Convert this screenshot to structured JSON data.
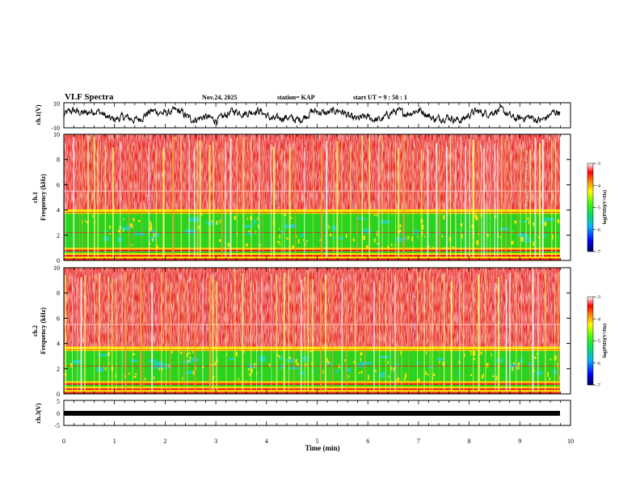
{
  "header": {
    "title": "VLF Spectra",
    "date": "Nov.24, 2025",
    "station": "station= KAP",
    "start": "start  UT  =   9 : 50 : 1"
  },
  "chart_data": [
    {
      "type": "line",
      "name": "ch1-waveform",
      "ylabel": "ch.1(V)",
      "ylim": [
        -10,
        10
      ],
      "yticks": [
        "10",
        "-10"
      ],
      "xlim": [
        0,
        9.83
      ],
      "description_values": "noisy voltage trace oscillating roughly between -6 and 6 V"
    },
    {
      "type": "heatmap",
      "name": "ch1-spectrogram",
      "ylabel_top": "ch.1",
      "ylabel": "Frequency  (kHz)",
      "ylim": [
        0,
        10
      ],
      "yticks": [
        "0",
        "2",
        "4",
        "6",
        "8",
        "10"
      ],
      "xlim": [
        0,
        9.83
      ],
      "bands_khz": {
        "low_power_band": [
          1.0,
          3.8
        ],
        "high_power_above": 3.8
      },
      "colorbar": {
        "label": "log(PSD)(V²/Hz)",
        "ticks": [
          "-3",
          "-4",
          "-5",
          "-6",
          "-7"
        ],
        "range": [
          -7,
          -3
        ]
      }
    },
    {
      "type": "heatmap",
      "name": "ch2-spectrogram",
      "ylabel_top": "ch.2",
      "ylabel": "Frequency  (kHz)",
      "ylim": [
        0,
        10
      ],
      "yticks": [
        "0",
        "2",
        "4",
        "6",
        "8",
        "10"
      ],
      "xlim": [
        0,
        9.83
      ],
      "bands_khz": {
        "low_power_band": [
          1.0,
          3.5
        ],
        "high_power_above": 3.5
      },
      "colorbar": {
        "label": "log(PSD)(V²/Hz)",
        "ticks": [
          "-3",
          "-4",
          "-5",
          "-6",
          "-7"
        ],
        "range": [
          -7,
          -3
        ]
      }
    },
    {
      "type": "line",
      "name": "ch3-waveform",
      "ylabel": "ch.3(V)",
      "ylim": [
        -5,
        5
      ],
      "yticks": [
        "5",
        "0",
        "-5"
      ],
      "xlim": [
        0,
        9.83
      ],
      "description_values": "thick flat band near -0.5 V"
    }
  ],
  "xaxis": {
    "label": "Time  (min)",
    "range": [
      0,
      10
    ],
    "ticks": [
      "0",
      "1",
      "2",
      "3",
      "4",
      "5",
      "6",
      "7",
      "8",
      "9",
      "10"
    ]
  },
  "colors": {
    "spectrogram_high": "#e8231f",
    "spectrogram_mid": "#ffe400",
    "spectrogram_low": "#2bd21f",
    "spectrogram_lowest": "#1fd3c8",
    "trace": "#000000"
  }
}
